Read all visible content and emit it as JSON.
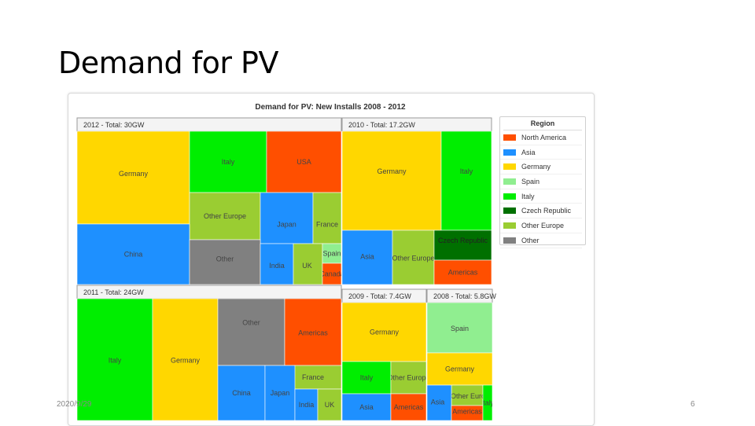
{
  "slide": {
    "title": "Demand for PV",
    "date": "2020/9/29",
    "page_number": "6"
  },
  "chart_data": {
    "type": "treemap",
    "title": "Demand for PV: New Installs 2008 - 2012",
    "legend": {
      "title": "Region",
      "placement": "right",
      "items": [
        {
          "label": "North America",
          "color": "#ff4f00"
        },
        {
          "label": "Asia",
          "color": "#1e90ff"
        },
        {
          "label": "Germany",
          "color": "#ffd700"
        },
        {
          "label": "Spain",
          "color": "#90ee90"
        },
        {
          "label": "Italy",
          "color": "#00ee00"
        },
        {
          "label": "Czech Republic",
          "color": "#007000"
        },
        {
          "label": "Other Europe",
          "color": "#9acd32"
        },
        {
          "label": "Other",
          "color": "#808080"
        }
      ]
    },
    "groups": [
      {
        "header": "2012 - Total: 30GW",
        "total_gw": 30,
        "cells": [
          {
            "label": "Germany",
            "region": "Germany"
          },
          {
            "label": "Italy",
            "region": "Italy"
          },
          {
            "label": "USA",
            "region": "North America"
          },
          {
            "label": "Other Europe",
            "region": "Other Europe"
          },
          {
            "label": "Japan",
            "region": "Asia"
          },
          {
            "label": "France",
            "region": "Other Europe"
          },
          {
            "label": "China",
            "region": "Asia"
          },
          {
            "label": "Other",
            "region": "Other"
          },
          {
            "label": "India",
            "region": "Asia"
          },
          {
            "label": "UK",
            "region": "Other Europe"
          },
          {
            "label": "Spain",
            "region": "Spain"
          },
          {
            "label": "Canada",
            "region": "North America"
          }
        ]
      },
      {
        "header": "2010 - Total: 17.2GW",
        "total_gw": 17.2,
        "cells": [
          {
            "label": "Germany",
            "region": "Germany"
          },
          {
            "label": "Italy",
            "region": "Italy"
          },
          {
            "label": "Asia",
            "region": "Asia"
          },
          {
            "label": "Other Europe",
            "region": "Other Europe"
          },
          {
            "label": "Czech Republic",
            "region": "Czech Republic"
          },
          {
            "label": "Americas",
            "region": "North America"
          }
        ]
      },
      {
        "header": "2011 - Total: 24GW",
        "total_gw": 24,
        "cells": [
          {
            "label": "Italy",
            "region": "Italy"
          },
          {
            "label": "Germany",
            "region": "Germany"
          },
          {
            "label": "Other",
            "region": "Other"
          },
          {
            "label": "Americas",
            "region": "North America"
          },
          {
            "label": "France",
            "region": "Other Europe"
          },
          {
            "label": "China",
            "region": "Asia"
          },
          {
            "label": "Japan",
            "region": "Asia"
          },
          {
            "label": "India",
            "region": "Asia"
          },
          {
            "label": "UK",
            "region": "Other Europe"
          }
        ]
      },
      {
        "header": "2009 - Total: 7.4GW",
        "total_gw": 7.4,
        "cells": [
          {
            "label": "Germany",
            "region": "Germany"
          },
          {
            "label": "Italy",
            "region": "Italy"
          },
          {
            "label": "Other Europe",
            "region": "Other Europe"
          },
          {
            "label": "Asia",
            "region": "Asia"
          },
          {
            "label": "Americas",
            "region": "North America"
          }
        ]
      },
      {
        "header": "2008 - Total: 5.8GW",
        "total_gw": 5.8,
        "cells": [
          {
            "label": "Spain",
            "region": "Spain"
          },
          {
            "label": "Germany",
            "region": "Germany"
          },
          {
            "label": "Other Europe",
            "region": "Other Europe"
          },
          {
            "label": "Asia",
            "region": "Asia"
          },
          {
            "label": "Americas",
            "region": "North America"
          },
          {
            "label": "Italy",
            "region": "Italy"
          }
        ]
      }
    ]
  }
}
